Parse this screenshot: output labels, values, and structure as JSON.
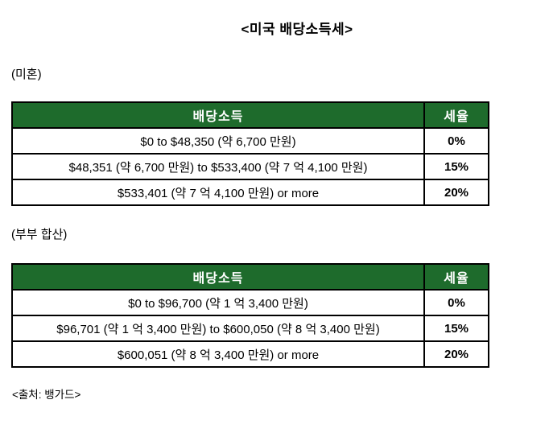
{
  "page": {
    "title": "<미국 배당소득세>",
    "source": "<출처: 뱅가드>"
  },
  "colors": {
    "header_green": "#1E6B2C",
    "header_text": "#FFFFFF",
    "border": "#000000",
    "body_text": "#000000"
  },
  "tables": [
    {
      "section_label": "(미혼)",
      "columns": [
        "배당소득",
        "세율"
      ],
      "rows": [
        {
          "income": "$0 to $48,350 (약 6,700 만원)",
          "rate": "0%"
        },
        {
          "income": "$48,351 (약 6,700 만원) to $533,400 (약 7 억 4,100 만원)",
          "rate": "15%"
        },
        {
          "income": "$533,401 (약 7 억 4,100 만원) or more",
          "rate": "20%"
        }
      ]
    },
    {
      "section_label": "(부부 합산)",
      "columns": [
        "배당소득",
        "세율"
      ],
      "rows": [
        {
          "income": "$0 to $96,700 (약 1 억 3,400 만원)",
          "rate": "0%"
        },
        {
          "income": "$96,701 (약 1 억 3,400 만원) to $600,050 (약 8 억 3,400 만원)",
          "rate": "15%"
        },
        {
          "income": "$600,051 (약 8 억 3,400 만원) or more",
          "rate": "20%"
        }
      ]
    }
  ]
}
